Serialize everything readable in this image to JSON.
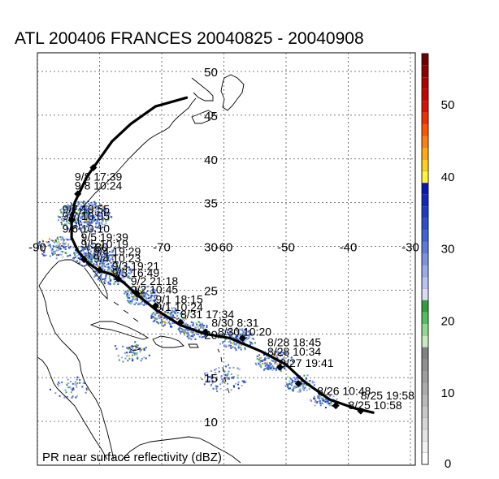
{
  "title": "ATL 200406 FRANCES 20040825 - 20040908",
  "caption": "PR near surface reflectivity (dBZ)",
  "map": {
    "lon_range": [
      -92,
      -29
    ],
    "lat_range": [
      6,
      52
    ],
    "lon_ticks": [
      -90,
      -80,
      -70,
      -60,
      -50,
      -40,
      -30
    ],
    "lat_ticks": [
      10,
      15,
      20,
      25,
      30,
      35,
      40,
      45,
      50
    ],
    "lon_labels": [
      "-90",
      "-80",
      "-70",
      "-60",
      "-50",
      "-40",
      "-30"
    ],
    "lat_labels": [
      "10",
      "15",
      "20",
      "25",
      "30",
      "35",
      "40",
      "45",
      "50"
    ]
  },
  "colorbar": {
    "labels": [
      "0",
      "10",
      "20",
      "30",
      "40",
      "50"
    ],
    "colors": [
      "#ffffff",
      "#f2f2f2",
      "#e4e4e4",
      "#d6d6d6",
      "#c8c8c8",
      "#bababa",
      "#acacac",
      "#9e9e9e",
      "#909090",
      "#828282",
      "#c8ecc0",
      "#90d890",
      "#50c060",
      "#2fa040",
      "#d8dcf6",
      "#b8c4f0",
      "#98acea",
      "#7a94e2",
      "#5c7cdc",
      "#3e64d4",
      "#2a50cc",
      "#1c3cc4",
      "#1028bc",
      "#0818b4",
      "#fff33f",
      "#ffd020",
      "#ffaa10",
      "#ff8010",
      "#ff5500",
      "#f03000",
      "#dc1000",
      "#c80000",
      "#b00000",
      "#900000",
      "#700000"
    ]
  },
  "track": {
    "points": [
      [
        -36,
        11
      ],
      [
        -39,
        11.5
      ],
      [
        -43,
        12.5
      ],
      [
        -47,
        14.5
      ],
      [
        -50,
        16.5
      ],
      [
        -54,
        18
      ],
      [
        -59,
        19.5
      ],
      [
        -63,
        20
      ],
      [
        -67,
        21
      ],
      [
        -71,
        22.8
      ],
      [
        -74,
        24.5
      ],
      [
        -76,
        25.8
      ],
      [
        -78,
        26.8
      ],
      [
        -80,
        27.2
      ],
      [
        -82,
        28.2
      ],
      [
        -83.5,
        29.5
      ],
      [
        -84.5,
        31
      ],
      [
        -84.5,
        33
      ],
      [
        -84,
        35
      ],
      [
        -82,
        38
      ],
      [
        -80,
        40
      ],
      [
        -78,
        42
      ],
      [
        -75,
        44
      ],
      [
        -71,
        46
      ],
      [
        -66,
        47
      ]
    ],
    "markers": [
      [
        -38,
        11.2
      ],
      [
        -42,
        11.8
      ],
      [
        -48,
        14.3
      ],
      [
        -51,
        16.2
      ],
      [
        -57,
        19.5
      ],
      [
        -63,
        20.2
      ],
      [
        -67,
        21.3
      ],
      [
        -71,
        23.2
      ],
      [
        -74,
        24.6
      ],
      [
        -77,
        26.3
      ],
      [
        -80,
        27.3
      ],
      [
        -82.5,
        28.5
      ],
      [
        -84.5,
        33
      ],
      [
        -83.5,
        36
      ],
      [
        -81,
        39
      ]
    ],
    "labels": [
      {
        "text": "8/25 10:58",
        "lon": -40,
        "lat": 11.4
      },
      {
        "text": "8/25 19:58",
        "lon": -38,
        "lat": 12.5
      },
      {
        "text": "8/26 10:48",
        "lon": -45,
        "lat": 13
      },
      {
        "text": "8/27 19:41",
        "lon": -51,
        "lat": 16.2
      },
      {
        "text": "8/28 10:34",
        "lon": -53,
        "lat": 17.5
      },
      {
        "text": "8/28 18:45",
        "lon": -53,
        "lat": 18.6
      },
      {
        "text": "8/30 10:20",
        "lon": -61,
        "lat": 19.8
      },
      {
        "text": "8/30 8:31",
        "lon": -62,
        "lat": 20.8
      },
      {
        "text": "8/31 17:34",
        "lon": -67,
        "lat": 21.8
      },
      {
        "text": "9/1 10:24",
        "lon": -71,
        "lat": 22.6
      },
      {
        "text": "9/1 18:15",
        "lon": -71,
        "lat": 23.5
      },
      {
        "text": "9/2 10:45",
        "lon": -75,
        "lat": 24.6
      },
      {
        "text": "9/2 21:18",
        "lon": -75,
        "lat": 25.6
      },
      {
        "text": "9/3 16:49",
        "lon": -78,
        "lat": 26.5
      },
      {
        "text": "9/3 19:21",
        "lon": -78,
        "lat": 27.3
      },
      {
        "text": "9/4 10:23",
        "lon": -81,
        "lat": 28.2
      },
      {
        "text": "9/4 19:29",
        "lon": -81,
        "lat": 29.0
      },
      {
        "text": "9/5 10:19",
        "lon": -83,
        "lat": 29.8
      },
      {
        "text": "9/5 19:39",
        "lon": -83,
        "lat": 30.6
      },
      {
        "text": "9/6 10:10",
        "lon": -86,
        "lat": 31.6
      },
      {
        "text": "9/7 10:05",
        "lon": -86,
        "lat": 33.0
      },
      {
        "text": "9/7 19:55",
        "lon": -86,
        "lat": 33.8
      },
      {
        "text": "9/8 10:24",
        "lon": -84,
        "lat": 36.5
      },
      {
        "text": "9/8 17:39",
        "lon": -84,
        "lat": 37.5
      }
    ]
  },
  "rain_clusters": [
    {
      "lon": -82.5,
      "lat": 33.5,
      "r": 28,
      "n": 420
    },
    {
      "lon": -81,
      "lat": 29,
      "r": 22,
      "n": 240
    },
    {
      "lon": -78,
      "lat": 27,
      "r": 20,
      "n": 200
    },
    {
      "lon": -73.5,
      "lat": 24.5,
      "r": 18,
      "n": 180
    },
    {
      "lon": -69,
      "lat": 22,
      "r": 18,
      "n": 160
    },
    {
      "lon": -65,
      "lat": 20.5,
      "r": 16,
      "n": 130
    },
    {
      "lon": -58,
      "lat": 19.5,
      "r": 20,
      "n": 160
    },
    {
      "lon": -52,
      "lat": 17,
      "r": 20,
      "n": 170
    },
    {
      "lon": -48,
      "lat": 14.5,
      "r": 16,
      "n": 110
    },
    {
      "lon": -44,
      "lat": 12.5,
      "r": 14,
      "n": 80
    },
    {
      "lon": -87,
      "lat": 30,
      "r": 20,
      "n": 120
    },
    {
      "lon": -60,
      "lat": 15,
      "r": 25,
      "n": 90
    },
    {
      "lon": -75,
      "lat": 18,
      "r": 20,
      "n": 60
    },
    {
      "lon": -85,
      "lat": 14,
      "r": 20,
      "n": 50
    }
  ]
}
